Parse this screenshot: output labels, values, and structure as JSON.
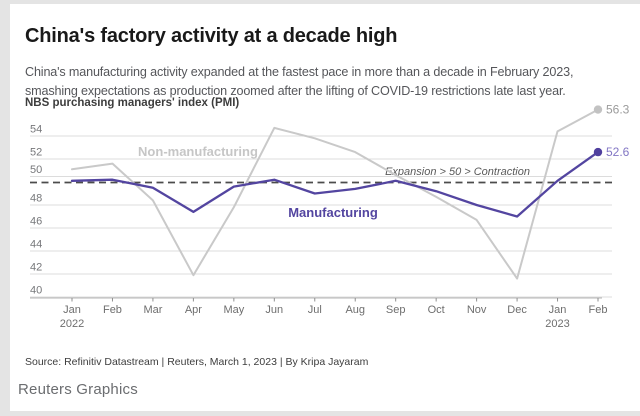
{
  "header": {
    "title": "China's factory activity at a decade high",
    "subtitle": "China's manufacturing activity expanded at the fastest pace in more than a decade in February 2023,\nsmashing expectations as production zoomed after the lifting of COVID-19 restrictions late last year.",
    "kicker": "NBS purchasing managers' index (PMI)"
  },
  "chart_data": {
    "type": "line",
    "title": "NBS purchasing managers' index (PMI)",
    "categories": [
      "Jan 2022",
      "Feb",
      "Mar",
      "Apr",
      "May",
      "Jun",
      "Jul",
      "Aug",
      "Sep",
      "Oct",
      "Nov",
      "Dec",
      "Jan 2023",
      "Feb"
    ],
    "x_tick_labels": [
      {
        "label": "Jan",
        "sub": "2022"
      },
      {
        "label": "Feb"
      },
      {
        "label": "Mar"
      },
      {
        "label": "Apr"
      },
      {
        "label": "May"
      },
      {
        "label": "Jun"
      },
      {
        "label": "Jul"
      },
      {
        "label": "Aug"
      },
      {
        "label": "Sep"
      },
      {
        "label": "Oct"
      },
      {
        "label": "Nov"
      },
      {
        "label": "Dec"
      },
      {
        "label": "Jan",
        "sub": "2023"
      },
      {
        "label": "Feb"
      }
    ],
    "series": [
      {
        "name": "Non-manufacturing",
        "color": "#c9c9c9",
        "label_color": "#c6c6c6",
        "values": [
          51.1,
          51.6,
          48.4,
          41.9,
          47.8,
          54.7,
          53.8,
          52.6,
          50.6,
          48.7,
          46.7,
          41.6,
          54.4,
          56.3
        ],
        "end_label": "56.3",
        "end_label_color": "#9b9b9b",
        "end_dot_color": "#c2c2c2"
      },
      {
        "name": "Manufacturing",
        "color": "#5345a0",
        "label_color": "#5345a0",
        "values": [
          50.1,
          50.2,
          49.5,
          47.4,
          49.6,
          50.2,
          49.0,
          49.4,
          50.1,
          49.2,
          48.0,
          47.0,
          50.1,
          52.6
        ],
        "end_label": "52.6",
        "end_label_color": "#8276c4",
        "end_dot_color": "#4f3f9e"
      }
    ],
    "yticks": [
      40,
      42,
      44,
      46,
      48,
      50,
      52,
      54
    ],
    "ylim": [
      39.5,
      57
    ],
    "grid": true,
    "legend_position": "inline",
    "reference_line": {
      "value": 50,
      "label": "Expansion > 50 > Contraction"
    }
  },
  "footer": {
    "source": "Source: Refinitiv Datastream | Reuters, March 1, 2023 | By Kripa Jayaram",
    "brand": "Reuters Graphics"
  }
}
